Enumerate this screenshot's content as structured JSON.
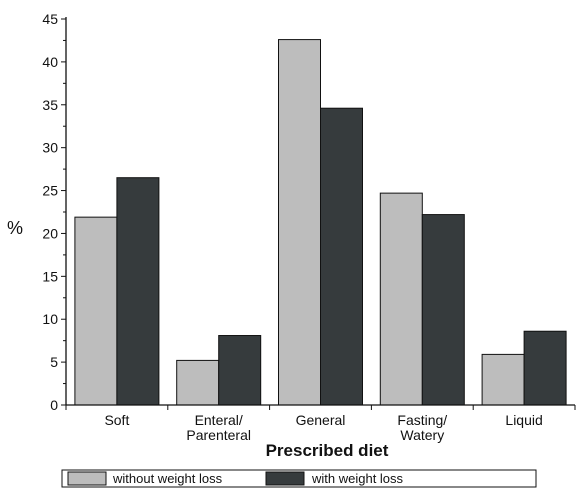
{
  "chart_data": {
    "type": "bar",
    "categories": [
      [
        "Soft"
      ],
      [
        "Enteral/",
        "Parenteral"
      ],
      [
        "General"
      ],
      [
        "Fasting/",
        "Watery"
      ],
      [
        "Liquid"
      ]
    ],
    "series": [
      {
        "name": "without weight loss",
        "values": [
          21.9,
          5.2,
          42.6,
          24.7,
          5.9
        ],
        "color": "#bdbdbd"
      },
      {
        "name": "with weight loss",
        "values": [
          26.5,
          8.1,
          34.6,
          22.2,
          8.6
        ],
        "color": "#363b3d"
      }
    ],
    "xlabel": "Prescribed diet",
    "ylabel": "%",
    "ylim": [
      0,
      45
    ],
    "yticks": [
      0,
      5,
      10,
      15,
      20,
      25,
      30,
      35,
      40,
      45
    ],
    "grid": false,
    "legend_position": "bottom"
  }
}
